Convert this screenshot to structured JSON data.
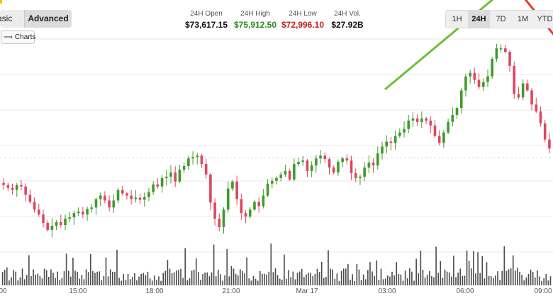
{
  "mode_tabs": [
    {
      "label": "asic",
      "active": false
    },
    {
      "label": "Advanced",
      "active": true
    }
  ],
  "charts_button": {
    "label": "Charts",
    "icon": "drawing-tools-icon"
  },
  "stats": [
    {
      "label": "24H Open",
      "value": "$73,617.15",
      "color": "#111111"
    },
    {
      "label": "24H High",
      "value": "$75,912.50",
      "color": "#2e8b1f"
    },
    {
      "label": "24H Low",
      "value": "$72,996.10",
      "color": "#c41e1e"
    },
    {
      "label": "24H Vol.",
      "value": "$27.92B",
      "color": "#111111"
    }
  ],
  "range_tabs": [
    {
      "label": "1H",
      "active": false
    },
    {
      "label": "24H",
      "active": true
    },
    {
      "label": "7D",
      "active": false
    },
    {
      "label": "1M",
      "active": false
    },
    {
      "label": "YTD",
      "active": false
    }
  ],
  "colors": {
    "up": "#3f9b2a",
    "down": "#e0465f",
    "volume": "#4a4a4a",
    "trend_green": "#6cbf3a",
    "trend_red": "#e53935",
    "grid": "#e9e9e9"
  },
  "chart_data": {
    "type": "candlestick",
    "x_tick_labels": [
      "00",
      "15:00",
      "18:00",
      "21:00",
      "Mar 17",
      "03:00",
      "06:00",
      "09:00"
    ],
    "grid": true,
    "price_series": [
      73900,
      73860,
      73830,
      73900,
      73880,
      73760,
      73660,
      73550,
      73480,
      73360,
      73260,
      73320,
      73370,
      73330,
      73420,
      73440,
      73500,
      73520,
      73480,
      73560,
      73580,
      73700,
      73750,
      73680,
      73580,
      73680,
      73830,
      73780,
      73750,
      73700,
      73720,
      73690,
      73730,
      73800,
      73910,
      73880,
      74000,
      74020,
      74080,
      73950,
      74120,
      74170,
      74280,
      74300,
      74320,
      74200,
      74050,
      73650,
      73420,
      73300,
      73550,
      73850,
      73950,
      73700,
      73500,
      73450,
      73550,
      73660,
      73600,
      73750,
      73920,
      73960,
      74000,
      74050,
      74100,
      73980,
      74200,
      74230,
      74250,
      74100,
      74180,
      74280,
      74320,
      74270,
      74150,
      74080,
      74230,
      74280,
      74250,
      74070,
      74000,
      74020,
      74150,
      74220,
      74180,
      74350,
      74450,
      74520,
      74500,
      74600,
      74650,
      74700,
      74820,
      74850,
      74800,
      74850,
      74820,
      74750,
      74600,
      74500,
      74650,
      74800,
      74900,
      75000,
      75250,
      75450,
      75500,
      75400,
      75300,
      75370,
      75450,
      75700,
      75850,
      75850,
      75800,
      75600,
      75200,
      75150,
      75350,
      75250,
      75050,
      74950,
      74780,
      74550,
      74420
    ]
  }
}
